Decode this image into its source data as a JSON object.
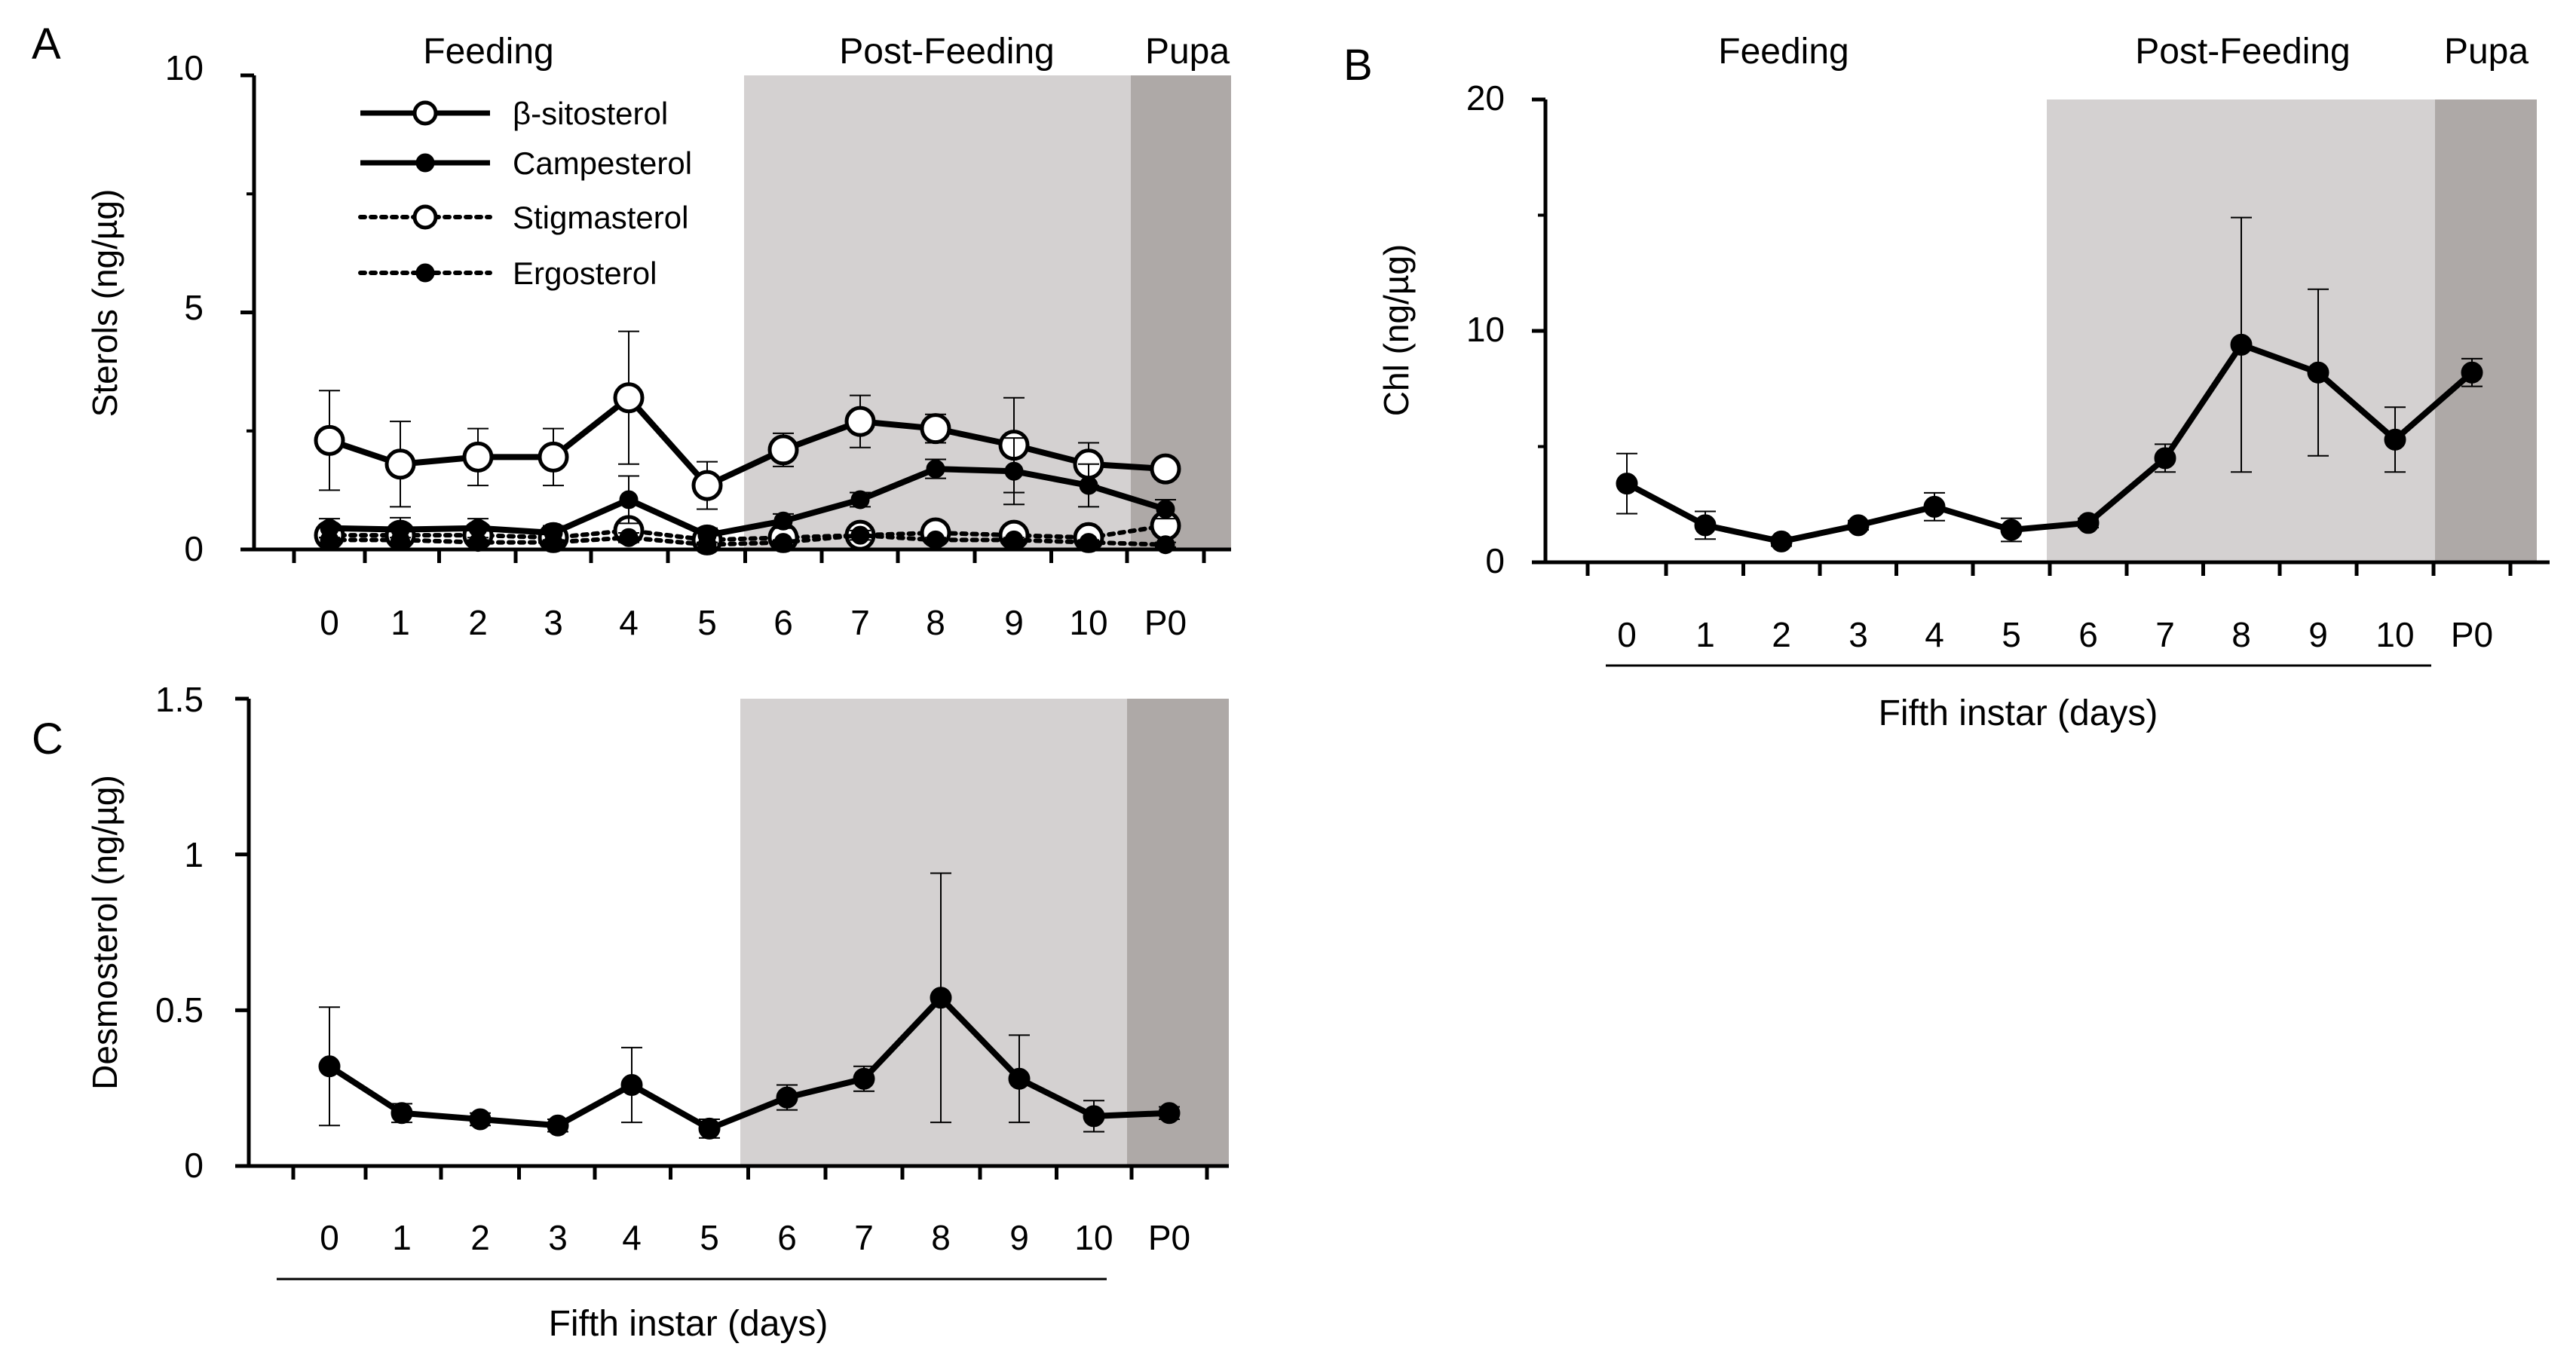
{
  "colors": {
    "post_feeding": "#d4d1d1",
    "pupa": "#aea9a7",
    "line": "#000000",
    "open_fill": "#ffffff"
  },
  "chart_data": [
    {
      "panel": "A",
      "type": "line",
      "categories": [
        "0",
        "1",
        "2",
        "3",
        "4",
        "5",
        "6",
        "7",
        "8",
        "9",
        "10",
        "P0"
      ],
      "ylabel": "Sterols (ng/µg)",
      "ylim": [
        0,
        10
      ],
      "yticks": [
        "0",
        "5",
        "10"
      ],
      "phases": [
        "Feeding",
        "Post-Feeding",
        "Pupa"
      ],
      "legend_position": "top-left",
      "series": [
        {
          "name": "β-sitosterol",
          "style": "solid",
          "marker": "open",
          "values": [
            2.3,
            1.8,
            1.95,
            1.95,
            3.2,
            1.35,
            2.1,
            2.7,
            2.55,
            2.2,
            1.8,
            1.7
          ],
          "err": [
            1.05,
            0.9,
            0.6,
            0.6,
            1.4,
            0.5,
            0.35,
            0.55,
            0.3,
            1.0,
            0.45,
            0
          ]
        },
        {
          "name": "Campesterol",
          "style": "solid",
          "marker": "filled",
          "values": [
            0.45,
            0.42,
            0.45,
            0.35,
            1.05,
            0.3,
            0.6,
            1.05,
            1.7,
            1.65,
            1.35,
            0.85
          ],
          "err": [
            0.2,
            0.25,
            0.2,
            0.15,
            0.5,
            0.15,
            0.15,
            0.15,
            0.2,
            0.7,
            0.45,
            0.2
          ]
        },
        {
          "name": "Stigmasterol",
          "style": "dotted",
          "marker": "open",
          "values": [
            0.3,
            0.3,
            0.3,
            0.25,
            0.4,
            0.2,
            0.25,
            0.3,
            0.35,
            0.3,
            0.25,
            0.5
          ],
          "err": [
            0.1,
            0.1,
            0.1,
            0.1,
            0.15,
            0.1,
            0.1,
            0.1,
            0.1,
            0.1,
            0.1,
            0.1
          ]
        },
        {
          "name": "Ergosterol",
          "style": "dotted",
          "marker": "filled",
          "values": [
            0.2,
            0.2,
            0.15,
            0.15,
            0.25,
            0.1,
            0.15,
            0.3,
            0.2,
            0.2,
            0.15,
            0.1
          ],
          "err": [
            0.05,
            0.05,
            0.05,
            0.05,
            0.1,
            0.05,
            0.05,
            0.1,
            0.05,
            0.05,
            0.05,
            0.05
          ]
        }
      ]
    },
    {
      "panel": "B",
      "type": "line",
      "categories": [
        "0",
        "1",
        "2",
        "3",
        "4",
        "5",
        "6",
        "7",
        "8",
        "9",
        "10",
        "P0"
      ],
      "ylabel": "Chl (ng/µg)",
      "xlabel": "Fifth instar (days)",
      "ylim": [
        0,
        20
      ],
      "yticks": [
        "0",
        "10",
        "20"
      ],
      "phases": [
        "Feeding",
        "Post-Feeding",
        "Pupa"
      ],
      "series": [
        {
          "name": "Chl",
          "style": "solid",
          "marker": "filled",
          "values": [
            3.4,
            1.6,
            0.9,
            1.6,
            2.4,
            1.4,
            1.7,
            4.5,
            9.4,
            8.2,
            5.3,
            8.2
          ],
          "err": [
            1.3,
            0.6,
            0.2,
            0.2,
            0.6,
            0.5,
            0.2,
            0.6,
            5.5,
            3.6,
            1.4,
            0.6
          ]
        }
      ]
    },
    {
      "panel": "C",
      "type": "line",
      "categories": [
        "0",
        "1",
        "2",
        "3",
        "4",
        "5",
        "6",
        "7",
        "8",
        "9",
        "10",
        "P0"
      ],
      "ylabel": "Desmosterol (ng/µg)",
      "xlabel": "Fifth instar (days)",
      "ylim": [
        0,
        1.5
      ],
      "yticks": [
        "0",
        "0.5",
        "1",
        "1.5"
      ],
      "series": [
        {
          "name": "Desmosterol",
          "style": "solid",
          "marker": "filled",
          "values": [
            0.32,
            0.17,
            0.15,
            0.13,
            0.26,
            0.12,
            0.22,
            0.28,
            0.54,
            0.28,
            0.16,
            0.17
          ],
          "err": [
            0.19,
            0.03,
            0.02,
            0.02,
            0.12,
            0.03,
            0.04,
            0.04,
            0.4,
            0.14,
            0.05,
            0.02
          ]
        }
      ]
    }
  ]
}
